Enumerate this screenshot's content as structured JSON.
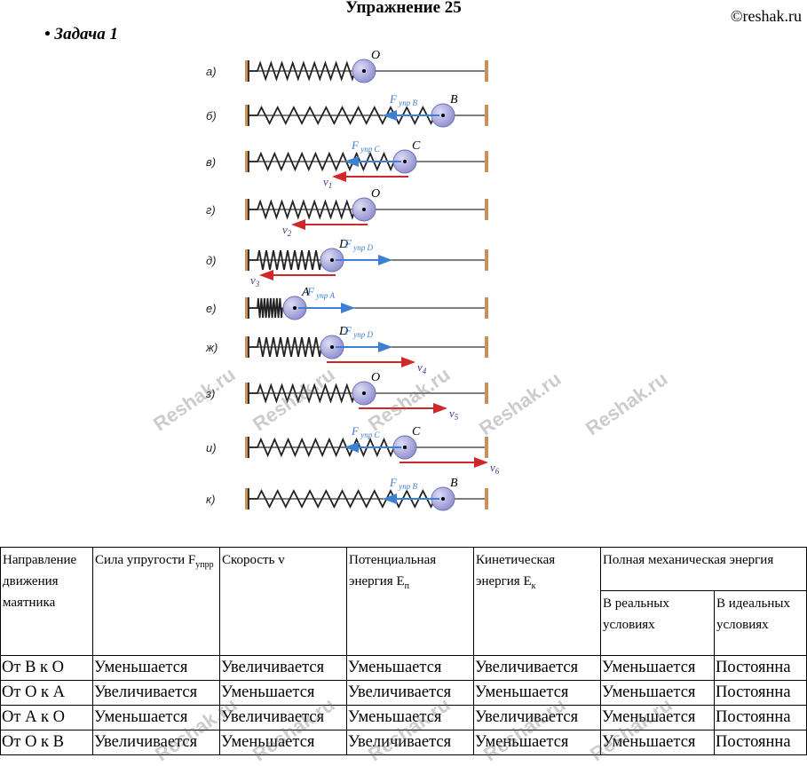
{
  "header": {
    "title": "Упражнение 25",
    "copyright": "©reshak.ru",
    "task": "• Задача 1"
  },
  "figure": {
    "rows": [
      {
        "label": "а)",
        "spring": "mid",
        "ball": "O",
        "force": null,
        "vel": null
      },
      {
        "label": "б)",
        "spring": "long",
        "ball": "B",
        "force": {
          "text": "упр B",
          "dir": "left"
        },
        "vel": null
      },
      {
        "label": "в)",
        "spring": "mid2",
        "ball": "C",
        "force": {
          "text": "упр C",
          "dir": "left"
        },
        "vel": {
          "text": "1",
          "dir": "left"
        }
      },
      {
        "label": "г)",
        "spring": "mid",
        "ball": "O",
        "force": null,
        "vel": {
          "text": "2",
          "dir": "left"
        }
      },
      {
        "label": "д)",
        "spring": "short",
        "ball": "D",
        "force": {
          "text": "упр D",
          "dir": "right"
        },
        "vel": {
          "text": "3",
          "dir": "left"
        }
      },
      {
        "label": "е)",
        "spring": "tiny",
        "ball": "A",
        "force": {
          "text": "упр A",
          "dir": "right"
        },
        "vel": null
      },
      {
        "label": "ж)",
        "spring": "short",
        "ball": "D",
        "force": {
          "text": "упр D",
          "dir": "right"
        },
        "vel": {
          "text": "4",
          "dir": "right"
        }
      },
      {
        "label": "з)",
        "spring": "mid",
        "ball": "O",
        "force": null,
        "vel": {
          "text": "5",
          "dir": "right"
        }
      },
      {
        "label": "и)",
        "spring": "mid2",
        "ball": "C",
        "force": {
          "text": "упр C",
          "dir": "left"
        },
        "vel": {
          "text": "6",
          "dir": "right"
        }
      },
      {
        "label": "к)",
        "spring": "long",
        "ball": "B",
        "force": {
          "text": "упр B",
          "dir": "left"
        },
        "vel": null
      }
    ],
    "force_symbol": "F",
    "velocity_symbol": "v",
    "colors": {
      "spring": "#222222",
      "ball": "#8f8fcf",
      "force": "#3d7fd0",
      "velocity": "#d0282a",
      "wall": "#c8905a"
    }
  },
  "watermark": "Reshak.ru",
  "table": {
    "headers": {
      "direction": "Направление движения маятника",
      "force": "Сила упругости F",
      "force_sub": "упрр",
      "velocity": "Скорость v",
      "potential": "Потенциальная энергия E",
      "potential_sub": "п",
      "kinetic": "Кинетическая энергия E",
      "kinetic_sub": "к",
      "total": "Полная механическая энергия",
      "real": "В реальных условиях",
      "ideal": "В идеальных условиях"
    },
    "rows": [
      [
        "От В к О",
        "Уменьшается",
        "Увеличивается",
        "Уменьшается",
        "Увеличивается",
        "Уменьшается",
        "Постоянна"
      ],
      [
        "От О к А",
        "Увеличивается",
        "Уменьшается",
        "Увеличивается",
        "Уменьшается",
        "Уменьшается",
        "Постоянна"
      ],
      [
        "От А к О",
        "Уменьшается",
        "Увеличивается",
        "Уменьшается",
        "Увеличивается",
        "Уменьшается",
        "Постоянна"
      ],
      [
        "От О к В",
        "Увеличивается",
        "Уменьшается",
        "Увеличивается",
        "Уменьшается",
        "Уменьшается",
        "Постоянна"
      ]
    ]
  }
}
